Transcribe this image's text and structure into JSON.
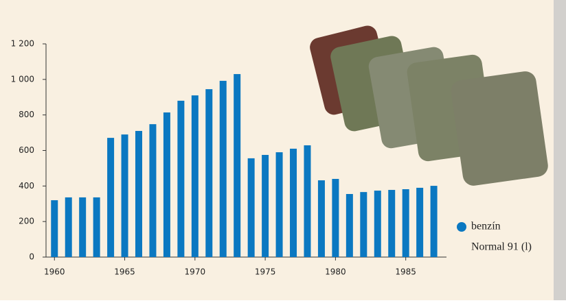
{
  "chart_data": {
    "type": "bar",
    "x": [
      1960,
      1961,
      1962,
      1963,
      1964,
      1965,
      1966,
      1967,
      1968,
      1969,
      1970,
      1971,
      1972,
      1973,
      1974,
      1975,
      1976,
      1977,
      1978,
      1979,
      1980,
      1981,
      1982,
      1983,
      1984,
      1985,
      1986,
      1987
    ],
    "series": [
      {
        "name": "benzín",
        "color": "#0b78c1",
        "values": [
          320,
          336,
          336,
          336,
          671,
          690,
          710,
          748,
          814,
          880,
          910,
          945,
          992,
          1030,
          556,
          575,
          590,
          610,
          629,
          432,
          440,
          355,
          366,
          374,
          378,
          382,
          390,
          401
        ]
      }
    ],
    "legend_note": "Normal 91 (l)",
    "xlim": [
      1959.4,
      1987.9
    ],
    "xticks": [
      1960,
      1965,
      1970,
      1975,
      1980,
      1985
    ],
    "ylim": [
      0,
      1200
    ],
    "yticks": [
      0,
      200,
      400,
      600,
      800,
      {
        "value": 1000,
        "label": "1 000"
      },
      {
        "value": 1200,
        "label": "1 200"
      }
    ]
  }
}
